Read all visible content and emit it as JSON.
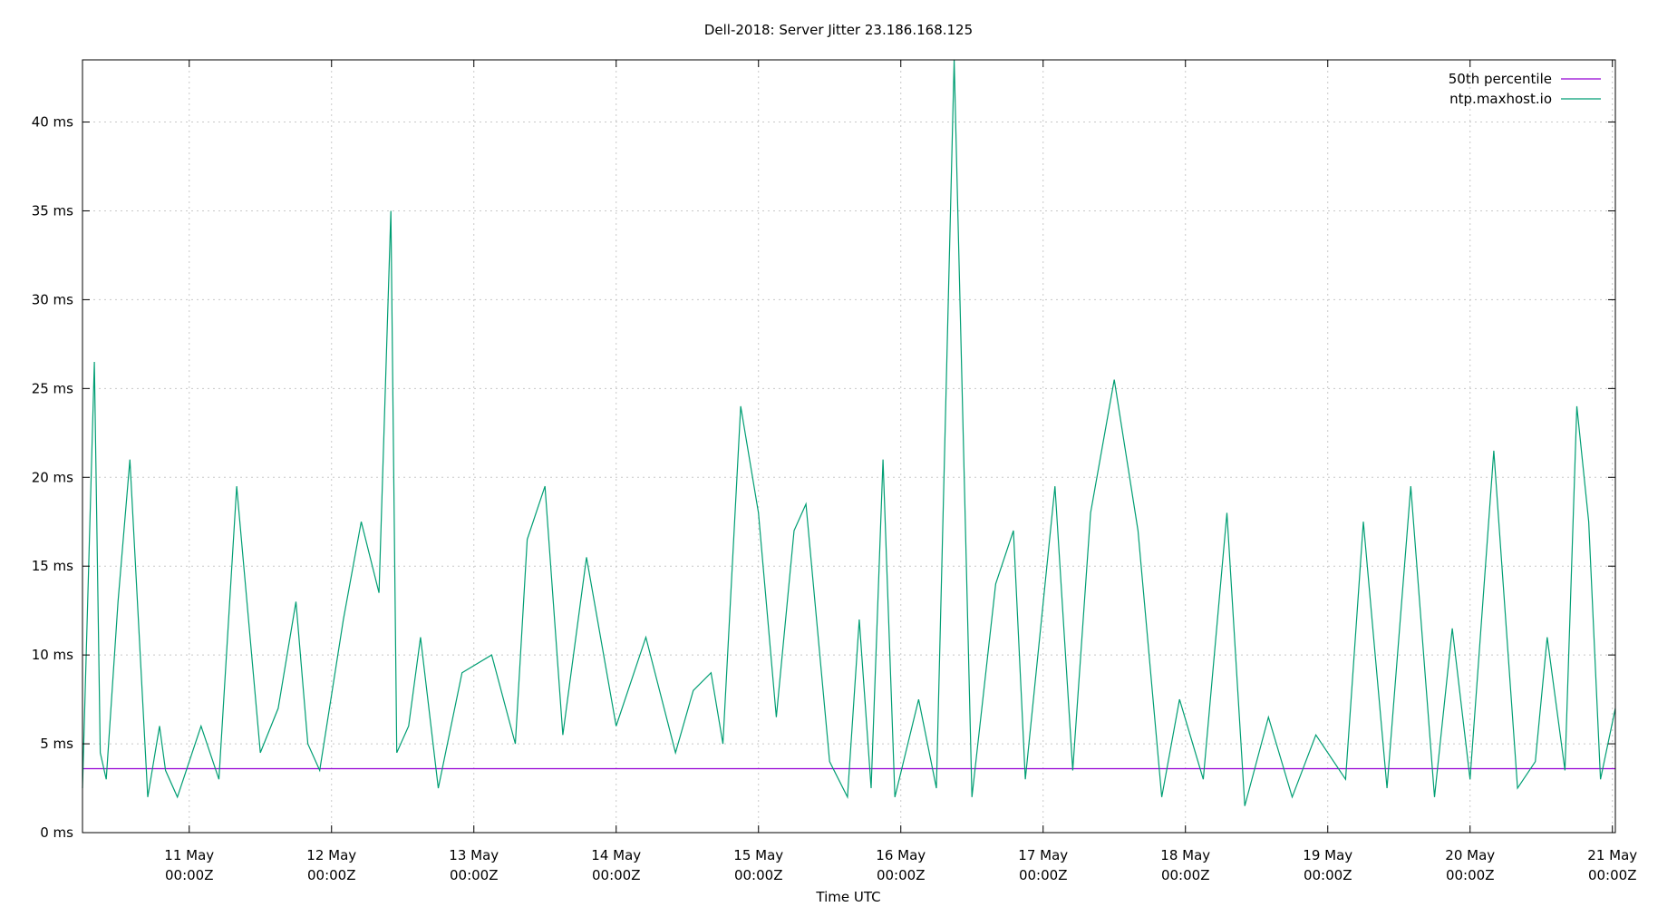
{
  "chart_data": {
    "type": "line",
    "title": "Dell-2018: Server Jitter 23.186.168.125",
    "xlabel": "Time UTC",
    "ylabel": "",
    "ylim": [
      0,
      43.5
    ],
    "xlim": [
      "2018-05-10T06:00Z",
      "2018-05-21T00:30Z"
    ],
    "yticks": [
      0,
      5,
      10,
      15,
      20,
      25,
      30,
      35,
      40
    ],
    "ytick_labels": [
      "0 ms",
      "5 ms",
      "10 ms",
      "15 ms",
      "20 ms",
      "25 ms",
      "30 ms",
      "35 ms",
      "40 ms"
    ],
    "xticks": [
      {
        "t": "2018-05-11T00:00Z",
        "line1": "11 May",
        "line2": "00:00Z"
      },
      {
        "t": "2018-05-12T00:00Z",
        "line1": "12 May",
        "line2": "00:00Z"
      },
      {
        "t": "2018-05-13T00:00Z",
        "line1": "13 May",
        "line2": "00:00Z"
      },
      {
        "t": "2018-05-14T00:00Z",
        "line1": "14 May",
        "line2": "00:00Z"
      },
      {
        "t": "2018-05-15T00:00Z",
        "line1": "15 May",
        "line2": "00:00Z"
      },
      {
        "t": "2018-05-16T00:00Z",
        "line1": "16 May",
        "line2": "00:00Z"
      },
      {
        "t": "2018-05-17T00:00Z",
        "line1": "17 May",
        "line2": "00:00Z"
      },
      {
        "t": "2018-05-18T00:00Z",
        "line1": "18 May",
        "line2": "00:00Z"
      },
      {
        "t": "2018-05-19T00:00Z",
        "line1": "19 May",
        "line2": "00:00Z"
      },
      {
        "t": "2018-05-20T00:00Z",
        "line1": "20 May",
        "line2": "00:00Z"
      },
      {
        "t": "2018-05-21T00:00Z",
        "line1": "21 May",
        "line2": "00:00Z"
      }
    ],
    "grid": true,
    "legend_position": "top-right",
    "series": [
      {
        "name": "50th percentile",
        "color": "#9400d3",
        "x": [
          "2018-05-10T06:00Z",
          "2018-05-21T00:30Z"
        ],
        "y": [
          3.6,
          3.6
        ]
      },
      {
        "name": "ntp.maxhost.io",
        "color": "#009e73",
        "x": [
          "2018-05-10T06:00Z",
          "2018-05-10T08:00Z",
          "2018-05-10T09:00Z",
          "2018-05-10T10:00Z",
          "2018-05-10T12:00Z",
          "2018-05-10T14:00Z",
          "2018-05-10T17:00Z",
          "2018-05-10T19:00Z",
          "2018-05-10T20:00Z",
          "2018-05-10T22:00Z",
          "2018-05-11T02:00Z",
          "2018-05-11T05:00Z",
          "2018-05-11T08:00Z",
          "2018-05-11T12:00Z",
          "2018-05-11T15:00Z",
          "2018-05-11T18:00Z",
          "2018-05-11T20:00Z",
          "2018-05-11T22:00Z",
          "2018-05-12T02:00Z",
          "2018-05-12T05:00Z",
          "2018-05-12T08:00Z",
          "2018-05-12T10:00Z",
          "2018-05-12T11:00Z",
          "2018-05-12T13:00Z",
          "2018-05-12T15:00Z",
          "2018-05-12T18:00Z",
          "2018-05-12T22:00Z",
          "2018-05-13T03:00Z",
          "2018-05-13T07:00Z",
          "2018-05-13T09:00Z",
          "2018-05-13T12:00Z",
          "2018-05-13T15:00Z",
          "2018-05-13T19:00Z",
          "2018-05-14T00:00Z",
          "2018-05-14T05:00Z",
          "2018-05-14T10:00Z",
          "2018-05-14T13:00Z",
          "2018-05-14T16:00Z",
          "2018-05-14T18:00Z",
          "2018-05-14T21:00Z",
          "2018-05-15T00:00Z",
          "2018-05-15T03:00Z",
          "2018-05-15T06:00Z",
          "2018-05-15T08:00Z",
          "2018-05-15T12:00Z",
          "2018-05-15T15:00Z",
          "2018-05-15T17:00Z",
          "2018-05-15T19:00Z",
          "2018-05-15T21:00Z",
          "2018-05-15T23:00Z",
          "2018-05-16T03:00Z",
          "2018-05-16T06:00Z",
          "2018-05-16T09:00Z",
          "2018-05-16T12:00Z",
          "2018-05-16T16:00Z",
          "2018-05-16T19:00Z",
          "2018-05-16T21:00Z",
          "2018-05-17T02:00Z",
          "2018-05-17T05:00Z",
          "2018-05-17T08:00Z",
          "2018-05-17T12:00Z",
          "2018-05-17T16:00Z",
          "2018-05-17T20:00Z",
          "2018-05-17T23:00Z",
          "2018-05-18T03:00Z",
          "2018-05-18T07:00Z",
          "2018-05-18T10:00Z",
          "2018-05-18T14:00Z",
          "2018-05-18T18:00Z",
          "2018-05-18T22:00Z",
          "2018-05-19T03:00Z",
          "2018-05-19T06:00Z",
          "2018-05-19T10:00Z",
          "2018-05-19T14:00Z",
          "2018-05-19T18:00Z",
          "2018-05-19T21:00Z",
          "2018-05-20T00:00Z",
          "2018-05-20T04:00Z",
          "2018-05-20T08:00Z",
          "2018-05-20T11:00Z",
          "2018-05-20T13:00Z",
          "2018-05-20T16:00Z",
          "2018-05-20T18:00Z",
          "2018-05-20T20:00Z",
          "2018-05-20T22:00Z",
          "2018-05-21T00:30Z"
        ],
        "y": [
          2.5,
          26.5,
          4.5,
          3.0,
          13.0,
          21.0,
          2.0,
          6.0,
          3.5,
          2.0,
          6.0,
          3.0,
          19.5,
          4.5,
          7.0,
          13.0,
          5.0,
          3.5,
          12.0,
          17.5,
          13.5,
          35.0,
          4.5,
          6.0,
          11.0,
          2.5,
          9.0,
          10.0,
          5.0,
          16.5,
          19.5,
          5.5,
          15.5,
          6.0,
          11.0,
          4.5,
          8.0,
          9.0,
          5.0,
          24.0,
          18.0,
          6.5,
          17.0,
          18.5,
          4.0,
          2.0,
          12.0,
          2.5,
          21.0,
          2.0,
          7.5,
          2.5,
          43.5,
          2.0,
          14.0,
          17.0,
          3.0,
          19.5,
          3.5,
          18.0,
          25.5,
          17.0,
          2.0,
          7.5,
          3.0,
          18.0,
          1.5,
          6.5,
          2.0,
          5.5,
          3.0,
          17.5,
          2.5,
          19.5,
          2.0,
          11.5,
          3.0,
          21.5,
          2.5,
          4.0,
          11.0,
          3.5,
          24.0,
          17.5,
          3.0,
          7.0
        ]
      }
    ]
  }
}
